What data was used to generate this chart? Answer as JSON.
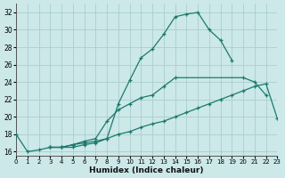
{
  "xlabel": "Humidex (Indice chaleur)",
  "bg_color": "#cce8e8",
  "grid_color": "#aacece",
  "line_color": "#1a7a6e",
  "xlim": [
    0,
    23
  ],
  "ylim": [
    15.5,
    33
  ],
  "xticks": [
    0,
    1,
    2,
    3,
    4,
    5,
    6,
    7,
    8,
    9,
    10,
    11,
    12,
    13,
    14,
    15,
    16,
    17,
    18,
    19,
    20,
    21,
    22,
    23
  ],
  "yticks": [
    16,
    18,
    20,
    22,
    24,
    26,
    28,
    30,
    32
  ],
  "series": [
    {
      "points": [
        [
          0,
          18
        ],
        [
          1,
          16
        ],
        [
          2,
          16.2
        ],
        [
          3,
          16.5
        ],
        [
          4,
          16.5
        ],
        [
          5,
          16.5
        ],
        [
          6,
          16.8
        ],
        [
          7,
          17.0
        ],
        [
          8,
          17.5
        ],
        [
          9,
          21.5
        ],
        [
          10,
          24.2
        ],
        [
          11,
          26.8
        ],
        [
          12,
          27.8
        ],
        [
          13,
          29.5
        ],
        [
          14,
          31.5
        ],
        [
          15,
          31.8
        ],
        [
          16,
          32
        ],
        [
          17,
          30
        ],
        [
          18,
          28.8
        ],
        [
          19,
          26.5
        ]
      ]
    },
    {
      "points": [
        [
          3,
          16.5
        ],
        [
          4,
          16.5
        ],
        [
          5,
          16.8
        ],
        [
          6,
          17.2
        ],
        [
          7,
          17.5
        ],
        [
          8,
          19.5
        ],
        [
          9,
          20.8
        ],
        [
          10,
          21.5
        ],
        [
          11,
          22.2
        ],
        [
          12,
          22.5
        ],
        [
          13,
          23.5
        ],
        [
          14,
          24.5
        ],
        [
          20,
          24.5
        ],
        [
          21,
          24.0
        ],
        [
          22,
          22.5
        ]
      ]
    },
    {
      "points": [
        [
          3,
          16.5
        ],
        [
          4,
          16.5
        ],
        [
          5,
          16.8
        ],
        [
          6,
          17.0
        ],
        [
          7,
          17.2
        ],
        [
          8,
          17.5
        ],
        [
          9,
          18.0
        ],
        [
          10,
          18.3
        ],
        [
          11,
          18.8
        ],
        [
          12,
          19.2
        ],
        [
          13,
          19.5
        ],
        [
          14,
          20.0
        ],
        [
          15,
          20.5
        ],
        [
          16,
          21.0
        ],
        [
          17,
          21.5
        ],
        [
          18,
          22.0
        ],
        [
          19,
          22.5
        ],
        [
          20,
          23.0
        ],
        [
          21,
          23.5
        ],
        [
          22,
          23.8
        ],
        [
          23,
          19.8
        ]
      ]
    }
  ]
}
